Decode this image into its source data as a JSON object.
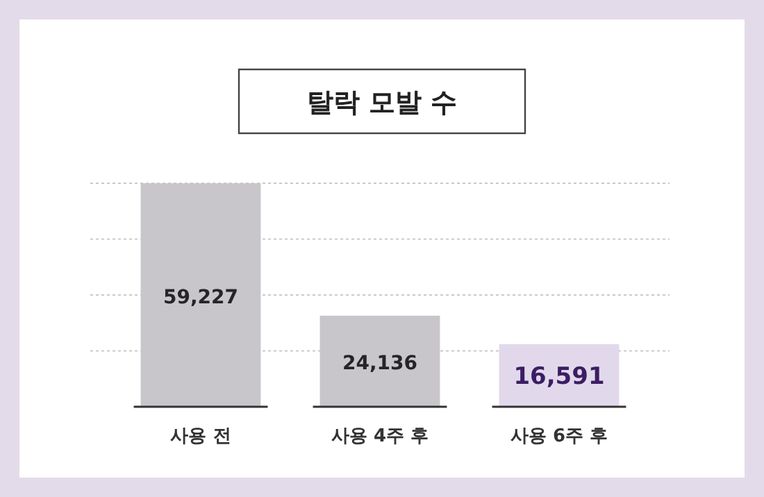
{
  "chart_data": {
    "type": "bar",
    "title": "탈락 모발 수",
    "categories": [
      "사용 전",
      "사용 4주 후",
      "사용 6주 후"
    ],
    "values": [
      59227,
      24136,
      16591
    ],
    "value_labels": [
      "59,227",
      "24,136",
      "16,591"
    ],
    "colors": [
      "#c8c6ca",
      "#c8c6ca",
      "#e1d9eb"
    ],
    "grid": true
  }
}
